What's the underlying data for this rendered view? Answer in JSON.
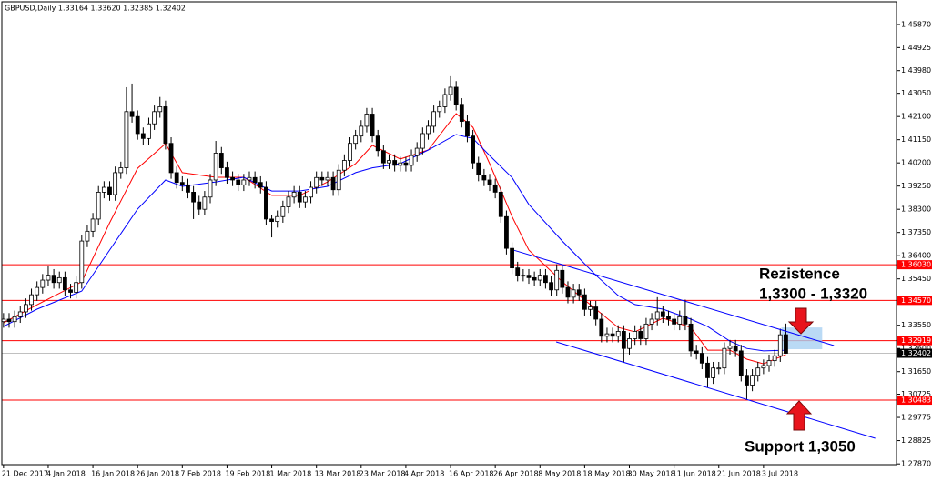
{
  "chart_data": {
    "type": "candlestick",
    "title": "GBPUSD,Daily  1.33164 1.33620 1.32385 1.32402",
    "categories": [
      "21 Dec 2017",
      null,
      null,
      null,
      null,
      null,
      null,
      null,
      "4 Jan 2018",
      null,
      null,
      null,
      null,
      null,
      null,
      null,
      "16 Jan 2018",
      null,
      null,
      null,
      null,
      null,
      null,
      null,
      "26 Jan 2018",
      null,
      null,
      null,
      null,
      null,
      null,
      null,
      "7 Feb 2018",
      null,
      null,
      null,
      null,
      null,
      null,
      null,
      "19 Feb 2018",
      null,
      null,
      null,
      null,
      null,
      null,
      null,
      "1 Mar 2018",
      null,
      null,
      null,
      null,
      null,
      null,
      null,
      "13 Mar 2018",
      null,
      null,
      null,
      null,
      null,
      null,
      null,
      "23 Mar 2018",
      null,
      null,
      null,
      null,
      null,
      null,
      null,
      "4 Apr 2018",
      null,
      null,
      null,
      null,
      null,
      null,
      null,
      "16 Apr 2018",
      null,
      null,
      null,
      null,
      null,
      null,
      null,
      "26 Apr 2018",
      null,
      null,
      null,
      null,
      null,
      null,
      null,
      "8 May 2018",
      null,
      null,
      null,
      null,
      null,
      null,
      null,
      "18 May 2018",
      null,
      null,
      null,
      null,
      null,
      null,
      null,
      "30 May 2018",
      null,
      null,
      null,
      null,
      null,
      null,
      null,
      "11 Jun 2018",
      null,
      null,
      null,
      null,
      null,
      null,
      null,
      "21 Jun 2018",
      null,
      null,
      null,
      null,
      null,
      null,
      null,
      "3 Jul 2018",
      null,
      null,
      null,
      null
    ],
    "open": [
      1.337,
      1.338,
      1.337,
      1.339,
      1.341,
      1.344,
      1.348,
      1.351,
      1.354,
      1.356,
      1.353,
      1.355,
      1.35,
      1.349,
      1.353,
      1.37,
      1.374,
      1.379,
      1.39,
      1.392,
      1.389,
      1.398,
      1.4,
      1.423,
      1.421,
      1.414,
      1.412,
      1.418,
      1.423,
      1.425,
      1.41,
      1.398,
      1.394,
      1.393,
      1.39,
      1.386,
      1.383,
      1.388,
      1.395,
      1.406,
      1.4,
      1.396,
      1.395,
      1.393,
      1.395,
      1.396,
      1.394,
      1.392,
      1.379,
      1.378,
      1.38,
      1.384,
      1.388,
      1.39,
      1.386,
      1.388,
      1.392,
      1.396,
      1.395,
      1.396,
      1.391,
      1.399,
      1.403,
      1.41,
      1.413,
      1.417,
      1.422,
      1.413,
      1.407,
      1.402,
      1.403,
      1.401,
      1.402,
      1.401,
      1.405,
      1.408,
      1.414,
      1.417,
      1.423,
      1.425,
      1.43,
      1.433,
      1.426,
      1.419,
      1.413,
      1.402,
      1.397,
      1.395,
      1.393,
      1.39,
      1.38,
      1.367,
      1.359,
      1.356,
      1.356,
      1.355,
      1.354,
      1.356,
      1.353,
      1.35,
      1.358,
      1.351,
      1.347,
      1.35,
      1.348,
      1.342,
      1.343,
      1.338,
      1.331,
      1.332,
      1.331,
      1.333,
      1.326,
      1.33,
      1.333,
      1.33,
      1.336,
      1.338,
      1.341,
      1.339,
      1.338,
      1.336,
      1.339,
      1.336,
      1.325,
      1.324,
      1.32,
      1.314,
      1.318,
      1.318,
      1.326,
      1.327,
      1.325,
      1.315,
      1.311,
      1.315,
      1.318,
      1.319,
      1.321,
      1.323,
      1.33164
    ],
    "high": [
      1.3405,
      1.3405,
      1.3415,
      1.3435,
      1.3465,
      1.3505,
      1.3535,
      1.3565,
      1.36,
      1.3585,
      1.3575,
      1.3575,
      1.3525,
      1.3555,
      1.3725,
      1.3765,
      1.3815,
      1.3925,
      1.3945,
      1.3945,
      1.4005,
      1.4025,
      1.433,
      1.4345,
      1.4235,
      1.4165,
      1.4205,
      1.4255,
      1.429,
      1.4275,
      1.4125,
      1.4005,
      1.3965,
      1.3955,
      1.3925,
      1.3885,
      1.3905,
      1.3975,
      1.411,
      1.4085,
      1.4025,
      1.3985,
      1.3975,
      1.3975,
      1.3985,
      1.3985,
      1.3965,
      1.3945,
      1.3805,
      1.3825,
      1.3865,
      1.3905,
      1.3925,
      1.3925,
      1.3905,
      1.3945,
      1.3985,
      1.3985,
      1.3985,
      1.3985,
      1.4015,
      1.4055,
      1.4125,
      1.4155,
      1.4195,
      1.4245,
      1.4245,
      1.4155,
      1.4095,
      1.4055,
      1.4055,
      1.4045,
      1.4045,
      1.4075,
      1.4105,
      1.4165,
      1.4195,
      1.4255,
      1.4275,
      1.4325,
      1.4375,
      1.4355,
      1.4285,
      1.4215,
      1.4155,
      1.4045,
      1.3995,
      1.3975,
      1.3955,
      1.3925,
      1.3825,
      1.3695,
      1.3615,
      1.3585,
      1.3585,
      1.3575,
      1.3585,
      1.3585,
      1.3555,
      1.3605,
      1.3605,
      1.3535,
      1.3525,
      1.3525,
      1.3505,
      1.3455,
      1.3455,
      1.3405,
      1.3345,
      1.3345,
      1.3355,
      1.3355,
      1.3325,
      1.3355,
      1.3355,
      1.3385,
      1.3405,
      1.347,
      1.3435,
      1.3415,
      1.3405,
      1.3415,
      1.346,
      1.3385,
      1.3275,
      1.3265,
      1.3225,
      1.3205,
      1.3205,
      1.3285,
      1.3295,
      1.3295,
      1.3275,
      1.3175,
      1.3175,
      1.3205,
      1.3215,
      1.3235,
      1.3255,
      1.3341,
      1.3362
    ],
    "low": [
      1.3345,
      1.3345,
      1.3345,
      1.3365,
      1.3385,
      1.3415,
      1.3455,
      1.3485,
      1.3515,
      1.3505,
      1.3505,
      1.3475,
      1.3465,
      1.3465,
      1.3505,
      1.3675,
      1.3715,
      1.3765,
      1.3875,
      1.3865,
      1.3865,
      1.3955,
      1.3975,
      1.4185,
      1.4115,
      1.4095,
      1.4095,
      1.4155,
      1.4205,
      1.4075,
      1.3955,
      1.3915,
      1.3905,
      1.3875,
      1.379,
      1.3805,
      1.3805,
      1.3855,
      1.3925,
      1.3975,
      1.3935,
      1.3925,
      1.3905,
      1.3905,
      1.3925,
      1.3915,
      1.3895,
      1.3765,
      1.3715,
      1.3755,
      1.3775,
      1.3815,
      1.3855,
      1.3835,
      1.3835,
      1.3855,
      1.3895,
      1.3925,
      1.3925,
      1.3885,
      1.3885,
      1.3965,
      1.4005,
      1.4075,
      1.4105,
      1.4145,
      1.4105,
      1.4045,
      1.3995,
      1.3995,
      1.3985,
      1.3985,
      1.3985,
      1.3985,
      1.4025,
      1.4055,
      1.4115,
      1.4145,
      1.4205,
      1.4225,
      1.4275,
      1.4235,
      1.4165,
      1.4105,
      1.3995,
      1.3945,
      1.3925,
      1.3905,
      1.3875,
      1.3775,
      1.3645,
      1.3565,
      1.3535,
      1.3535,
      1.3525,
      1.3515,
      1.3515,
      1.3505,
      1.3475,
      1.3475,
      1.3485,
      1.3445,
      1.3445,
      1.3455,
      1.3395,
      1.3395,
      1.3355,
      1.3285,
      1.3285,
      1.3285,
      1.3285,
      1.3205,
      1.3235,
      1.3275,
      1.3275,
      1.3275,
      1.3335,
      1.3355,
      1.3365,
      1.3355,
      1.3335,
      1.3335,
      1.3335,
      1.3225,
      1.3215,
      1.3175,
      1.31,
      1.3115,
      1.3155,
      1.3155,
      1.3235,
      1.3225,
      1.3125,
      1.305,
      1.3085,
      1.3125,
      1.3155,
      1.3165,
      1.3185,
      1.3205,
      1.32385
    ],
    "close": [
      1.338,
      1.337,
      1.339,
      1.341,
      1.344,
      1.348,
      1.351,
      1.354,
      1.356,
      1.353,
      1.355,
      1.35,
      1.349,
      1.353,
      1.37,
      1.374,
      1.379,
      1.39,
      1.392,
      1.389,
      1.398,
      1.4,
      1.423,
      1.421,
      1.414,
      1.412,
      1.418,
      1.423,
      1.425,
      1.41,
      1.398,
      1.394,
      1.393,
      1.39,
      1.386,
      1.383,
      1.388,
      1.395,
      1.406,
      1.4,
      1.396,
      1.395,
      1.393,
      1.395,
      1.396,
      1.394,
      1.392,
      1.379,
      1.378,
      1.38,
      1.384,
      1.388,
      1.39,
      1.386,
      1.388,
      1.392,
      1.396,
      1.395,
      1.396,
      1.391,
      1.399,
      1.403,
      1.41,
      1.413,
      1.417,
      1.422,
      1.413,
      1.407,
      1.402,
      1.403,
      1.401,
      1.402,
      1.401,
      1.405,
      1.408,
      1.414,
      1.417,
      1.423,
      1.425,
      1.43,
      1.433,
      1.426,
      1.419,
      1.413,
      1.402,
      1.397,
      1.395,
      1.393,
      1.39,
      1.38,
      1.367,
      1.359,
      1.356,
      1.356,
      1.355,
      1.354,
      1.356,
      1.353,
      1.35,
      1.358,
      1.351,
      1.347,
      1.35,
      1.348,
      1.342,
      1.343,
      1.338,
      1.331,
      1.332,
      1.331,
      1.333,
      1.326,
      1.33,
      1.333,
      1.33,
      1.336,
      1.338,
      1.341,
      1.339,
      1.338,
      1.336,
      1.339,
      1.336,
      1.325,
      1.324,
      1.32,
      1.314,
      1.318,
      1.318,
      1.326,
      1.327,
      1.325,
      1.315,
      1.311,
      1.315,
      1.318,
      1.319,
      1.321,
      1.323,
      1.3316,
      1.32402
    ],
    "series": [
      {
        "color": "#ff0000",
        "x": [
          0,
          6,
          14,
          19,
          24,
          29,
          32,
          38,
          43,
          48,
          53,
          58,
          63,
          66,
          71,
          76,
          81,
          84,
          87,
          91,
          94,
          100,
          106,
          110,
          113,
          118,
          123,
          126,
          130,
          133,
          136,
          140
        ],
        "values": [
          1.3365,
          1.3439,
          1.3533,
          1.3775,
          1.3998,
          1.4099,
          1.398,
          1.3961,
          1.3961,
          1.3887,
          1.3887,
          1.3942,
          1.4017,
          1.4092,
          1.4036,
          1.4073,
          1.4222,
          1.4166,
          1.4017,
          1.38,
          1.3663,
          1.3533,
          1.3421,
          1.3346,
          1.3328,
          1.3384,
          1.3346,
          1.3253,
          1.3253,
          1.3216,
          1.3197,
          1.3235
        ]
      },
      {
        "color": "#0000ff",
        "x": [
          0,
          6,
          14,
          19,
          24,
          29,
          32,
          38,
          43,
          48,
          53,
          58,
          63,
          66,
          71,
          76,
          81,
          84,
          87,
          91,
          94,
          100,
          106,
          110,
          113,
          118,
          123,
          126,
          130,
          133,
          136,
          140
        ],
        "values": [
          1.335,
          1.3421,
          1.3495,
          1.3663,
          1.3831,
          1.395,
          1.3924,
          1.3942,
          1.3961,
          1.3905,
          1.3905,
          1.3924,
          1.398,
          1.4,
          1.4017,
          1.4073,
          1.4136,
          1.412,
          1.405,
          1.396,
          1.385,
          1.37,
          1.356,
          1.3477,
          1.344,
          1.3421,
          1.338,
          1.335,
          1.329,
          1.326,
          1.325,
          1.3253
        ]
      }
    ],
    "trendlines": [
      {
        "color": "#0000ff",
        "x": [
          91.4,
          148.6
        ],
        "y": [
          1.3662,
          1.3272
        ]
      },
      {
        "color": "#0000ff",
        "x": [
          98.9,
          156
        ],
        "y": [
          1.3287,
          1.2892
        ]
      }
    ],
    "zone": {
      "color": "#a9d1f2",
      "x": [
        139.2,
        146.5
      ],
      "y": [
        1.3257,
        1.3346
      ]
    },
    "levels": [
      {
        "value": 1.3603,
        "label": "1.36030"
      },
      {
        "value": 1.3457,
        "label": "1.34570"
      },
      {
        "value": 1.32919,
        "label": "1.32919"
      },
      {
        "value": 1.30483,
        "label": "1.30483"
      }
    ],
    "level_color": "#ff0000",
    "price_line": {
      "value": 1.32402,
      "label": "1.32402"
    },
    "annotations": [
      "Rezistence",
      "1,3300 - 1,3320",
      "Support 1,3050"
    ],
    "xlim": [
      -0.3,
      159.8
    ],
    "ylim": [
      1.2784,
      1.468
    ],
    "yticks": [
      {
        "value": 1.4587,
        "label": "1.45870"
      },
      {
        "value": 1.44925,
        "label": "1.44925"
      },
      {
        "value": 1.4398,
        "label": "1.43980"
      },
      {
        "value": 1.4305,
        "label": "1.43050"
      },
      {
        "value": 1.421,
        "label": "1.42100"
      },
      {
        "value": 1.4115,
        "label": "1.41150"
      },
      {
        "value": 1.402,
        "label": "1.40200"
      },
      {
        "value": 1.3925,
        "label": "1.39250"
      },
      {
        "value": 1.383,
        "label": "1.38300"
      },
      {
        "value": 1.3735,
        "label": "1.37350"
      },
      {
        "value": 1.364,
        "label": "1.36400"
      },
      {
        "value": 1.3545,
        "label": "1.35450"
      },
      {
        "value": 1.3355,
        "label": "1.33550"
      },
      {
        "value": 1.326,
        "label": "1.32600"
      },
      {
        "value": 1.3165,
        "label": "1.31650"
      },
      {
        "value": 1.30725,
        "label": "1.30725"
      },
      {
        "value": 1.29775,
        "label": "1.29775"
      },
      {
        "value": 1.28825,
        "label": "1.28825"
      },
      {
        "value": 1.2787,
        "label": "1.27870"
      }
    ],
    "grid": false
  }
}
